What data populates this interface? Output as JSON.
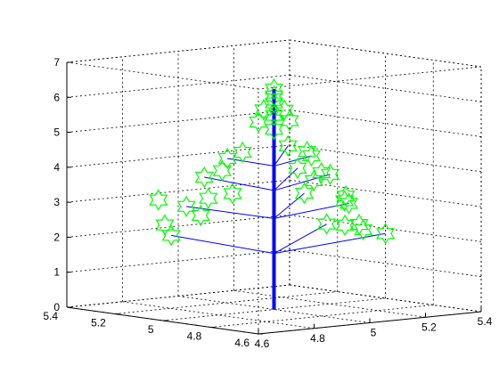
{
  "colors": {
    "trunk": "#0000ff",
    "branches": "#0000ff",
    "stars": "#00ff00",
    "axes": "#000000",
    "background": "#ffffff"
  },
  "chart_data": {
    "type": "3d-line-scatter",
    "grid": true,
    "box": true,
    "view": "3d",
    "xlim": [
      4.6,
      5.4
    ],
    "ylim": [
      4.6,
      5.4
    ],
    "zlim": [
      0,
      7
    ],
    "xticks": [
      "4.6",
      "4.8",
      "5",
      "5.2",
      "5.4"
    ],
    "yticks": [
      "4.6",
      "4.8",
      "5",
      "5.2",
      "5.4"
    ],
    "zticks": [
      "0",
      "1",
      "2",
      "3",
      "4",
      "5",
      "6",
      "7"
    ],
    "marker": "hexagram",
    "trunk": {
      "x": [
        5,
        5
      ],
      "y": [
        5,
        5
      ],
      "z": [
        0,
        6.3
      ]
    },
    "branches": [
      {
        "from": [
          5,
          5,
          1.6
        ],
        "to": [
          5.0,
          4.78,
          2.65
        ]
      },
      {
        "from": [
          5,
          5,
          1.6
        ],
        "to": [
          5.28,
          4.86,
          2.08
        ]
      },
      {
        "from": [
          5,
          5,
          1.6
        ],
        "to": [
          4.82,
          5.22,
          2.05
        ]
      },
      {
        "from": [
          5,
          5,
          2.6
        ],
        "to": [
          4.98,
          4.85,
          3.48
        ]
      },
      {
        "from": [
          5,
          5,
          2.6
        ],
        "to": [
          5.2,
          4.92,
          2.95
        ]
      },
      {
        "from": [
          5,
          5,
          2.6
        ],
        "to": [
          4.84,
          5.18,
          2.9
        ]
      },
      {
        "from": [
          5,
          5,
          3.4
        ],
        "to": [
          4.99,
          4.89,
          4.15
        ]
      },
      {
        "from": [
          5,
          5,
          3.4
        ],
        "to": [
          5.15,
          4.94,
          3.8
        ]
      },
      {
        "from": [
          5,
          5,
          3.4
        ],
        "to": [
          4.87,
          5.14,
          3.75
        ]
      },
      {
        "from": [
          5,
          5,
          4.1
        ],
        "to": [
          4.99,
          4.93,
          4.75
        ]
      },
      {
        "from": [
          5,
          5,
          4.1
        ],
        "to": [
          5.1,
          4.96,
          4.35
        ]
      },
      {
        "from": [
          5,
          5,
          4.1
        ],
        "to": [
          4.91,
          5.09,
          4.3
        ]
      }
    ],
    "stars": [
      [
        5.0,
        4.78,
        2.65
      ],
      [
        5.28,
        4.86,
        2.08
      ],
      [
        4.82,
        5.22,
        2.05
      ],
      [
        5.2,
        4.86,
        2.25
      ],
      [
        5.22,
        4.9,
        2.35
      ],
      [
        5.1,
        4.82,
        2.5
      ],
      [
        4.84,
        5.12,
        2.7
      ],
      [
        4.78,
        5.2,
        2.4
      ],
      [
        4.98,
        4.85,
        3.48
      ],
      [
        5.2,
        4.92,
        2.95
      ],
      [
        4.84,
        5.18,
        2.9
      ],
      [
        5.12,
        4.84,
        3.3
      ],
      [
        5.15,
        4.88,
        3.1
      ],
      [
        4.85,
        5.1,
        3.2
      ],
      [
        4.8,
        5.25,
        3.05
      ],
      [
        4.92,
        5.08,
        3.3
      ],
      [
        4.99,
        4.89,
        4.15
      ],
      [
        5.15,
        4.94,
        3.8
      ],
      [
        4.87,
        5.14,
        3.75
      ],
      [
        5.05,
        4.86,
        4.0
      ],
      [
        4.9,
        5.1,
        3.95
      ],
      [
        5.1,
        4.95,
        3.65
      ],
      [
        4.99,
        4.93,
        4.75
      ],
      [
        5.1,
        4.96,
        4.35
      ],
      [
        4.91,
        5.09,
        4.3
      ],
      [
        5.05,
        4.92,
        4.55
      ],
      [
        4.93,
        5.05,
        4.5
      ],
      [
        5.0,
        5.0,
        5.15
      ],
      [
        4.97,
        5.03,
        5.35
      ],
      [
        5.03,
        4.97,
        5.4
      ],
      [
        5.0,
        5.0,
        5.55
      ],
      [
        4.98,
        5.02,
        5.7
      ],
      [
        5.02,
        4.98,
        5.7
      ],
      [
        5.0,
        5.0,
        5.9
      ],
      [
        5.0,
        5.0,
        6.1
      ],
      [
        5.0,
        5.0,
        6.3
      ]
    ]
  }
}
